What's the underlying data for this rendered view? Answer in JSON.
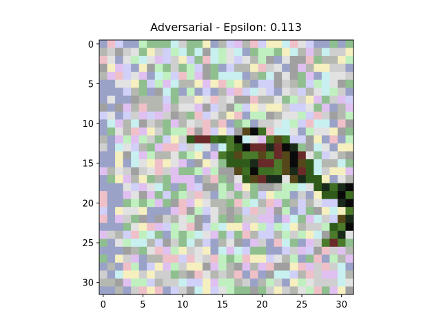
{
  "chart_data": {
    "type": "heatmap",
    "title": "Adversarial - Epsilon: 0.113",
    "xlabel": "",
    "ylabel": "",
    "image_size": [
      32,
      32
    ],
    "xlim": [
      -0.5,
      31.5
    ],
    "ylim": [
      31.5,
      -0.5
    ],
    "xticks": [
      0,
      5,
      10,
      15,
      20,
      25,
      30
    ],
    "yticks": [
      0,
      5,
      10,
      15,
      20,
      25,
      30
    ],
    "grid": false,
    "palette": [
      "#9aa2c8",
      "#b4b8b0",
      "#cfcfcf",
      "#e2e2e2",
      "#f0c0c8",
      "#c8f0f0",
      "#e0c0f0",
      "#c0f0c0",
      "#f6f0c0",
      "#a0a0a0",
      "#d0d0f8",
      "#8fbf8f"
    ],
    "object_region": {
      "description_colors": [
        "#2f5a1a",
        "#3d6e22",
        "#4a7a2a",
        "#1a2a1a",
        "#0a0a0a",
        "#56471a",
        "#6a2a2a"
      ],
      "cells": [
        [
          11,
          12
        ],
        [
          12,
          12
        ],
        [
          13,
          12
        ],
        [
          14,
          12
        ],
        [
          15,
          12
        ],
        [
          16,
          12
        ],
        [
          17,
          12
        ],
        [
          18,
          11
        ],
        [
          19,
          11
        ],
        [
          20,
          11
        ],
        [
          21,
          12
        ],
        [
          22,
          12
        ],
        [
          23,
          12
        ],
        [
          24,
          13
        ],
        [
          16,
          13
        ],
        [
          17,
          13
        ],
        [
          18,
          13
        ],
        [
          19,
          13
        ],
        [
          20,
          13
        ],
        [
          21,
          13
        ],
        [
          22,
          13
        ],
        [
          23,
          13
        ],
        [
          24,
          14
        ],
        [
          25,
          14
        ],
        [
          15,
          14
        ],
        [
          16,
          14
        ],
        [
          17,
          14
        ],
        [
          18,
          14
        ],
        [
          19,
          14
        ],
        [
          20,
          14
        ],
        [
          21,
          14
        ],
        [
          22,
          14
        ],
        [
          23,
          14
        ],
        [
          26,
          15
        ],
        [
          16,
          15
        ],
        [
          17,
          15
        ],
        [
          18,
          15
        ],
        [
          19,
          15
        ],
        [
          20,
          15
        ],
        [
          21,
          15
        ],
        [
          22,
          15
        ],
        [
          23,
          15
        ],
        [
          24,
          15
        ],
        [
          25,
          15
        ],
        [
          17,
          16
        ],
        [
          18,
          16
        ],
        [
          19,
          16
        ],
        [
          20,
          16
        ],
        [
          21,
          16
        ],
        [
          22,
          16
        ],
        [
          23,
          16
        ],
        [
          24,
          16
        ],
        [
          25,
          16
        ],
        [
          26,
          16
        ],
        [
          27,
          17
        ],
        [
          18,
          17
        ],
        [
          19,
          17
        ],
        [
          20,
          17
        ],
        [
          21,
          17
        ],
        [
          22,
          17
        ],
        [
          24,
          17
        ],
        [
          25,
          17
        ],
        [
          26,
          17
        ],
        [
          27,
          18
        ],
        [
          28,
          18
        ],
        [
          29,
          18
        ],
        [
          30,
          18
        ],
        [
          31,
          18
        ],
        [
          30,
          19
        ],
        [
          31,
          19
        ],
        [
          28,
          19
        ],
        [
          29,
          19
        ],
        [
          31,
          20
        ],
        [
          30,
          20
        ],
        [
          31,
          21
        ],
        [
          30,
          22
        ],
        [
          31,
          22
        ],
        [
          29,
          23
        ],
        [
          30,
          23
        ],
        [
          31,
          23
        ],
        [
          29,
          24
        ],
        [
          30,
          24
        ],
        [
          28,
          25
        ],
        [
          29,
          25
        ],
        [
          30,
          25
        ]
      ]
    }
  }
}
